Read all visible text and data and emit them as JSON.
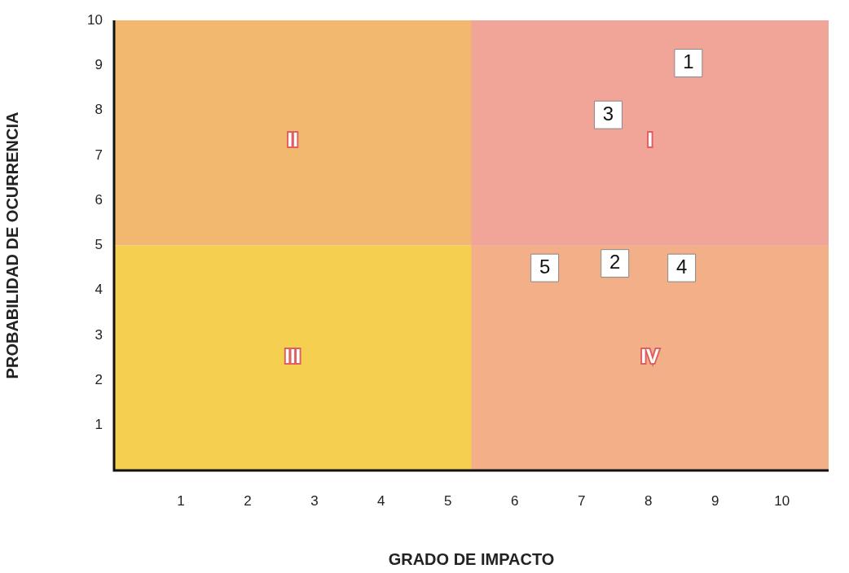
{
  "chart_data": {
    "type": "scatter",
    "xlabel": "GRADO DE IMPACTO",
    "ylabel": "PROBABILIDAD DE OCURRENCIA",
    "xlim": [
      0,
      10.7
    ],
    "ylim": [
      0,
      10
    ],
    "xticks": [
      1,
      2,
      3,
      4,
      5,
      6,
      7,
      8,
      9,
      10
    ],
    "yticks": [
      1,
      2,
      3,
      4,
      5,
      6,
      7,
      8,
      9,
      10
    ],
    "grid": false,
    "legend": false,
    "marker": "square",
    "series": [
      {
        "color": "#ffffff",
        "x": [
          8.6,
          7.5,
          7.4,
          8.5,
          6.45
        ],
        "values": [
          9.05,
          4.6,
          7.9,
          4.5,
          4.5
        ]
      }
    ],
    "bands": [
      {
        "axis": "y",
        "from": 0,
        "to": 5,
        "color": "#f5cf50"
      },
      {
        "axis": "y",
        "from": 5,
        "to": 10,
        "color": "#f2b870"
      },
      {
        "axis": "x",
        "from": 5.35,
        "to": 10.7,
        "color": "#f090c0"
      }
    ],
    "annotations": [
      {
        "text": "1",
        "x": 8.6,
        "y": 9.05
      },
      {
        "text": "2",
        "x": 7.5,
        "y": 4.6
      },
      {
        "text": "3",
        "x": 7.4,
        "y": 7.9
      },
      {
        "text": "4",
        "x": 8.5,
        "y": 4.5
      },
      {
        "text": "5",
        "x": 6.45,
        "y": 4.5
      },
      "I",
      "II",
      "III",
      "IV"
    ]
  }
}
